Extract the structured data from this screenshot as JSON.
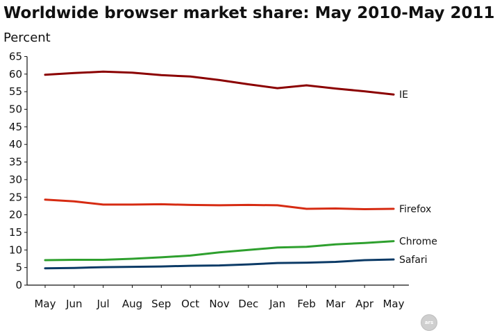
{
  "chart_data": {
    "type": "line",
    "title": "Worldwide browser market share: May 2010-May 2011",
    "subtitle": "Percent",
    "xlabel": "",
    "ylabel": "",
    "categories": [
      "May",
      "Jun",
      "Jul",
      "Aug",
      "Sep",
      "Oct",
      "Nov",
      "Dec",
      "Jan",
      "Feb",
      "Mar",
      "Apr",
      "May"
    ],
    "ylim": [
      0,
      65
    ],
    "yticks": [
      0,
      5,
      10,
      15,
      20,
      25,
      30,
      35,
      40,
      45,
      50,
      55,
      60,
      65
    ],
    "grid": false,
    "legend": "end-of-line labels",
    "series": [
      {
        "name": "IE",
        "color": "#8b0000",
        "values": [
          59.8,
          60.3,
          60.7,
          60.4,
          59.7,
          59.3,
          58.3,
          57.1,
          56.0,
          56.8,
          55.9,
          55.1,
          54.2
        ]
      },
      {
        "name": "Firefox",
        "color": "#d62b12",
        "values": [
          24.3,
          23.8,
          22.9,
          22.9,
          23.0,
          22.8,
          22.7,
          22.8,
          22.7,
          21.7,
          21.8,
          21.6,
          21.7
        ]
      },
      {
        "name": "Chrome",
        "color": "#2ea02e",
        "values": [
          7.1,
          7.2,
          7.2,
          7.5,
          7.9,
          8.4,
          9.3,
          10.0,
          10.7,
          10.9,
          11.6,
          12.0,
          12.5
        ]
      },
      {
        "name": "Safari",
        "color": "#0b3a66",
        "values": [
          4.8,
          4.9,
          5.1,
          5.2,
          5.3,
          5.5,
          5.6,
          5.9,
          6.3,
          6.4,
          6.6,
          7.1,
          7.3
        ]
      }
    ]
  },
  "logo_text": "ars"
}
